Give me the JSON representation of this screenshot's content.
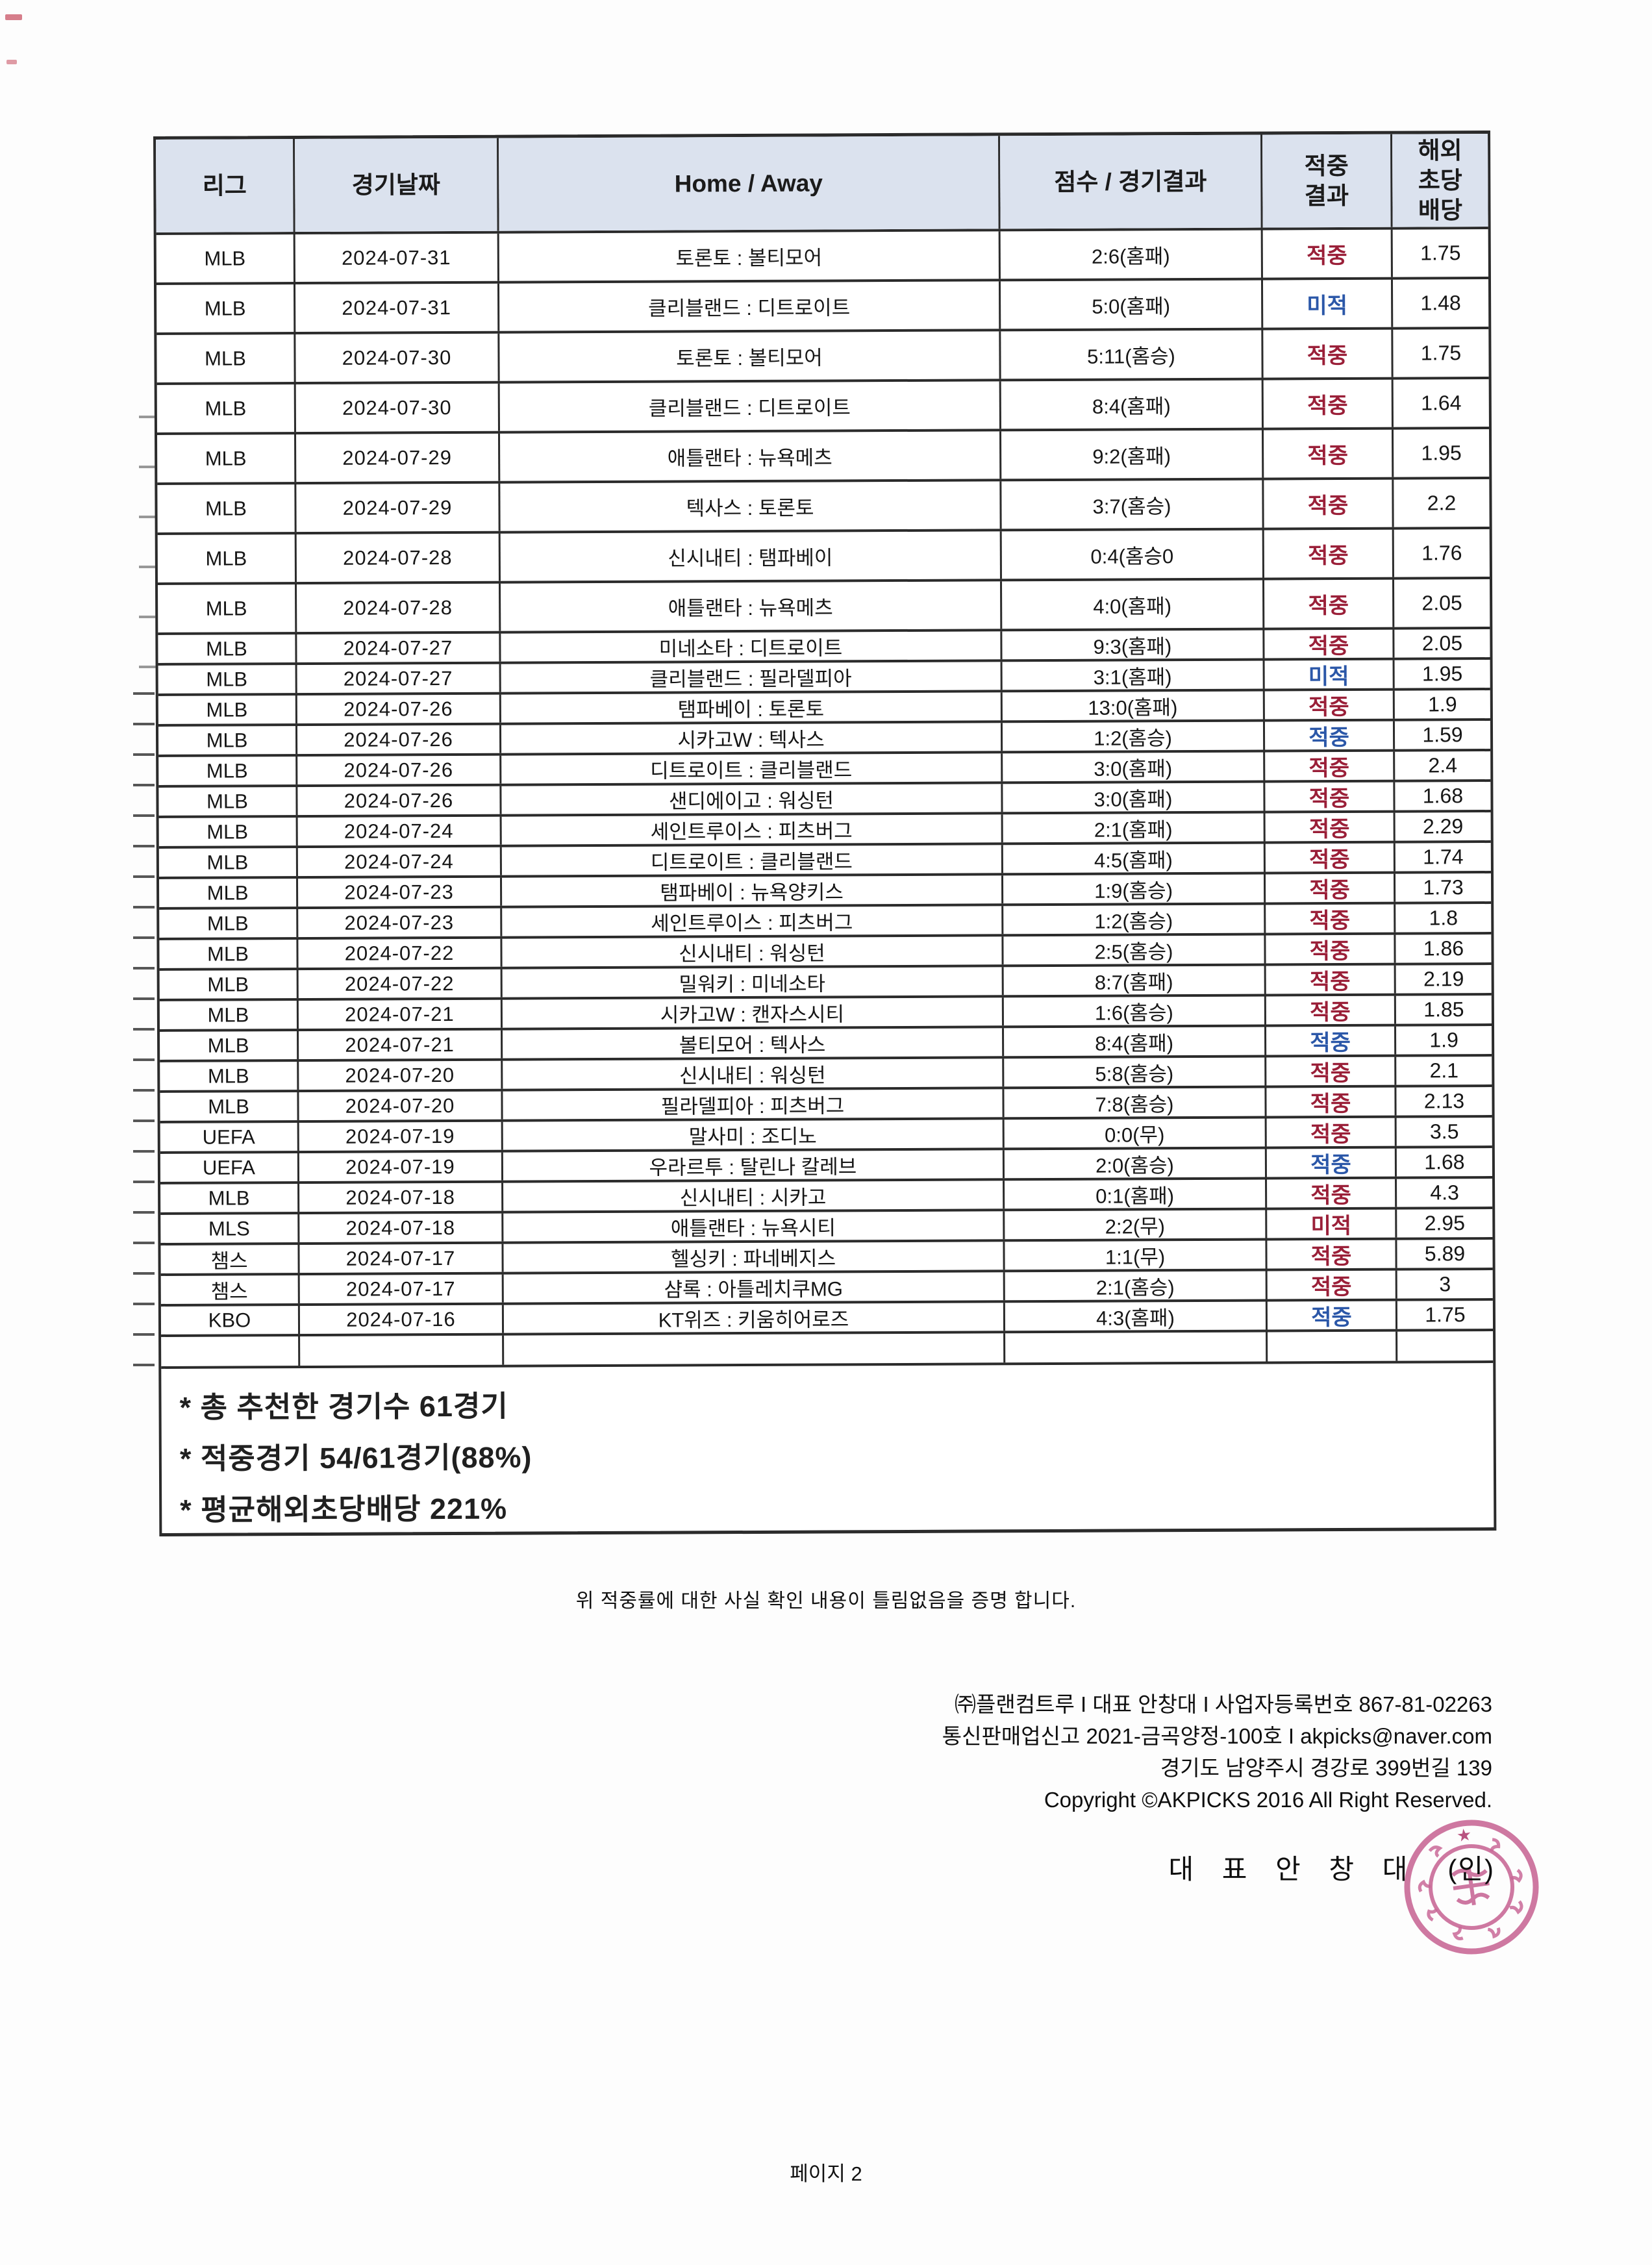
{
  "colors": {
    "header_bg": "#dbe2ee",
    "grid_line": "#2b2b2b",
    "hit_red": "#9a1f38",
    "hit_blue": "#2b57a8",
    "stamp_pink": "#c4558a"
  },
  "table": {
    "headers": [
      {
        "lines": [
          "리그"
        ]
      },
      {
        "lines": [
          "경기날짜"
        ]
      },
      {
        "lines": [
          "Home / Away"
        ]
      },
      {
        "lines": [
          "점수 / 경기결과"
        ]
      },
      {
        "lines": [
          "적중",
          "결과"
        ]
      },
      {
        "lines": [
          "해외",
          "초당",
          "배당"
        ]
      }
    ],
    "rows": [
      {
        "league": "MLB",
        "date": "2024-07-31",
        "match": "토론토 : 볼티모어",
        "score": "2:6(홈패)",
        "result": "적중",
        "result_color": "red",
        "odds": "1.75"
      },
      {
        "league": "MLB",
        "date": "2024-07-31",
        "match": "클리블랜드 : 디트로이트",
        "score": "5:0(홈패)",
        "result": "미적",
        "result_color": "blue",
        "odds": "1.48"
      },
      {
        "league": "MLB",
        "date": "2024-07-30",
        "match": "토론토 : 볼티모어",
        "score": "5:11(홈승)",
        "result": "적중",
        "result_color": "red",
        "odds": "1.75"
      },
      {
        "league": "MLB",
        "date": "2024-07-30",
        "match": "클리블랜드 : 디트로이트",
        "score": "8:4(홈패)",
        "result": "적중",
        "result_color": "red",
        "odds": "1.64"
      },
      {
        "league": "MLB",
        "date": "2024-07-29",
        "match": "애틀랜타 : 뉴욕메츠",
        "score": "9:2(홈패)",
        "result": "적중",
        "result_color": "red",
        "odds": "1.95"
      },
      {
        "league": "MLB",
        "date": "2024-07-29",
        "match": "텍사스 : 토론토",
        "score": "3:7(홈승)",
        "result": "적중",
        "result_color": "red",
        "odds": "2.2"
      },
      {
        "league": "MLB",
        "date": "2024-07-28",
        "match": "신시내티 : 탬파베이",
        "score": "0:4(홈승0",
        "result": "적중",
        "result_color": "red",
        "odds": "1.76"
      },
      {
        "league": "MLB",
        "date": "2024-07-28",
        "match": "애틀랜타 : 뉴욕메츠",
        "score": "4:0(홈패)",
        "result": "적중",
        "result_color": "red",
        "odds": "2.05"
      },
      {
        "league": "MLB",
        "date": "2024-07-27",
        "match": "미네소타 : 디트로이트",
        "score": "9:3(홈패)",
        "result": "적중",
        "result_color": "red",
        "odds": "2.05"
      },
      {
        "league": "MLB",
        "date": "2024-07-27",
        "match": "클리블랜드 : 필라델피아",
        "score": "3:1(홈패)",
        "result": "미적",
        "result_color": "blue",
        "odds": "1.95"
      },
      {
        "league": "MLB",
        "date": "2024-07-26",
        "match": "탬파베이 : 토론토",
        "score": "13:0(홈패)",
        "result": "적중",
        "result_color": "red",
        "odds": "1.9"
      },
      {
        "league": "MLB",
        "date": "2024-07-26",
        "match": "시카고W : 텍사스",
        "score": "1:2(홈승)",
        "result": "적중",
        "result_color": "blue",
        "odds": "1.59"
      },
      {
        "league": "MLB",
        "date": "2024-07-26",
        "match": "디트로이트 : 클리블랜드",
        "score": "3:0(홈패)",
        "result": "적중",
        "result_color": "red",
        "odds": "2.4"
      },
      {
        "league": "MLB",
        "date": "2024-07-26",
        "match": "샌디에이고 : 워싱턴",
        "score": "3:0(홈패)",
        "result": "적중",
        "result_color": "red",
        "odds": "1.68"
      },
      {
        "league": "MLB",
        "date": "2024-07-24",
        "match": "세인트루이스 : 피츠버그",
        "score": "2:1(홈패)",
        "result": "적중",
        "result_color": "red",
        "odds": "2.29"
      },
      {
        "league": "MLB",
        "date": "2024-07-24",
        "match": "디트로이트 : 클리블랜드",
        "score": "4:5(홈패)",
        "result": "적중",
        "result_color": "red",
        "odds": "1.74"
      },
      {
        "league": "MLB",
        "date": "2024-07-23",
        "match": "탬파베이 : 뉴욕양키스",
        "score": "1:9(홈승)",
        "result": "적중",
        "result_color": "red",
        "odds": "1.73"
      },
      {
        "league": "MLB",
        "date": "2024-07-23",
        "match": "세인트루이스 : 피츠버그",
        "score": "1:2(홈승)",
        "result": "적중",
        "result_color": "red",
        "odds": "1.8"
      },
      {
        "league": "MLB",
        "date": "2024-07-22",
        "match": "신시내티 : 워싱턴",
        "score": "2:5(홈승)",
        "result": "적중",
        "result_color": "red",
        "odds": "1.86"
      },
      {
        "league": "MLB",
        "date": "2024-07-22",
        "match": "밀워키 : 미네소타",
        "score": "8:7(홈패)",
        "result": "적중",
        "result_color": "red",
        "odds": "2.19"
      },
      {
        "league": "MLB",
        "date": "2024-07-21",
        "match": "시카고W : 캔자스시티",
        "score": "1:6(홈승)",
        "result": "적중",
        "result_color": "red",
        "odds": "1.85"
      },
      {
        "league": "MLB",
        "date": "2024-07-21",
        "match": "볼티모어 : 텍사스",
        "score": "8:4(홈패)",
        "result": "적중",
        "result_color": "blue",
        "odds": "1.9"
      },
      {
        "league": "MLB",
        "date": "2024-07-20",
        "match": "신시내티 : 워싱턴",
        "score": "5:8(홈승)",
        "result": "적중",
        "result_color": "red",
        "odds": "2.1"
      },
      {
        "league": "MLB",
        "date": "2024-07-20",
        "match": "필라델피아 : 피츠버그",
        "score": "7:8(홈승)",
        "result": "적중",
        "result_color": "red",
        "odds": "2.13"
      },
      {
        "league": "UEFA",
        "date": "2024-07-19",
        "match": "말사미 : 조디노",
        "score": "0:0(무)",
        "result": "적중",
        "result_color": "red",
        "odds": "3.5"
      },
      {
        "league": "UEFA",
        "date": "2024-07-19",
        "match": "우라르투 : 탈린나 칼레브",
        "score": "2:0(홈승)",
        "result": "적중",
        "result_color": "blue",
        "odds": "1.68"
      },
      {
        "league": "MLB",
        "date": "2024-07-18",
        "match": "신시내티 : 시카고",
        "score": "0:1(홈패)",
        "result": "적중",
        "result_color": "red",
        "odds": "4.3"
      },
      {
        "league": "MLS",
        "date": "2024-07-18",
        "match": "애틀랜타 : 뉴욕시티",
        "score": "2:2(무)",
        "result": "미적",
        "result_color": "red",
        "odds": "2.95"
      },
      {
        "league": "챔스",
        "date": "2024-07-17",
        "match": "헬싱키 : 파네베지스",
        "score": "1:1(무)",
        "result": "적중",
        "result_color": "red",
        "odds": "5.89"
      },
      {
        "league": "챔스",
        "date": "2024-07-17",
        "match": "샴록 : 아틀레치쿠MG",
        "score": "2:1(홈승)",
        "result": "적중",
        "result_color": "red",
        "odds": "3"
      },
      {
        "league": "KBO",
        "date": "2024-07-16",
        "match": "KT위즈 : 키움히어로즈",
        "score": "4:3(홈패)",
        "result": "적중",
        "result_color": "blue",
        "odds": "1.75"
      },
      {
        "league": "",
        "date": "",
        "match": "",
        "score": "",
        "result": "",
        "result_color": "",
        "odds": ""
      }
    ]
  },
  "summary": {
    "lines": [
      "* 총 추천한 경기수 61경기",
      "* 적중경기 54/61경기(88%)",
      "* 평균해외초당배당 221%"
    ]
  },
  "certification": "위 적중률에 대한 사실 확인 내용이 틀림없음을 증명 합니다.",
  "footer": {
    "lines": [
      "㈜플랜컴트루 I 대표 안창대 I 사업자등록번호 867-81-02263",
      "통신판매업신고 2021-금곡양정-100호 I akpicks@naver.com",
      "경기도 남양주시 경강로 399번길 139",
      "Copyright ©AKPICKS 2016 All Right Reserved."
    ],
    "signature_name": "대 표 안 창 대",
    "seal_label": "(인)",
    "stamp_star": "★"
  },
  "page_number": "페이지 2"
}
